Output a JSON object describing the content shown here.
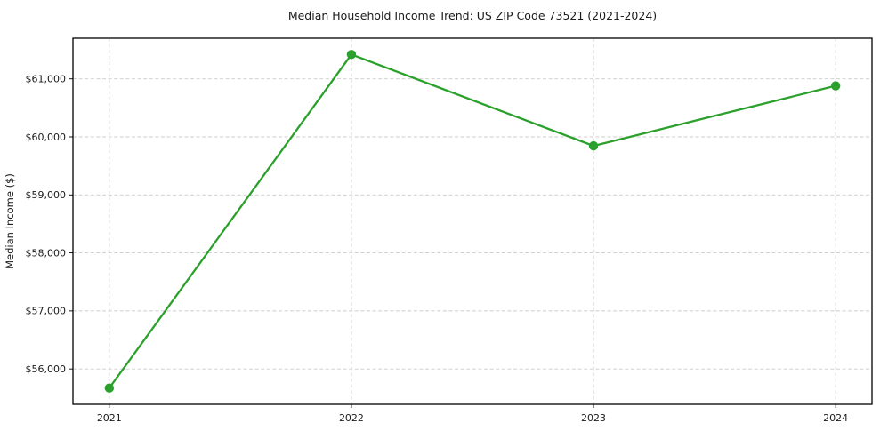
{
  "chart_data": {
    "type": "line",
    "title": "Median Household Income Trend: US ZIP Code 73521 (2021-2024)",
    "xlabel": "",
    "ylabel": "Median Income ($)",
    "x": [
      2021,
      2022,
      2023,
      2024
    ],
    "xtick_labels": [
      "2021",
      "2022",
      "2023",
      "2024"
    ],
    "series": [
      {
        "name": "Median Household Income",
        "values": [
          55670,
          61420,
          59845,
          60880
        ],
        "value_labels": [
          "$55,670",
          "$61,420",
          "$59,845",
          "$60,880"
        ]
      }
    ],
    "yticks": [
      56000,
      57000,
      58000,
      59000,
      60000,
      61000
    ],
    "ytick_labels": [
      "$56,000",
      "$57,000",
      "$58,000",
      "$59,000",
      "$60,000",
      "$61,000"
    ],
    "xlim": [
      2020.85,
      2024.15
    ],
    "ylim": [
      55390,
      61700
    ],
    "grid": true,
    "grid_style": "dashed",
    "legend_position": "none",
    "line_color": "#2ca02c",
    "marker": "circle",
    "grid_color": "#cccccc",
    "spine_color": "#000000",
    "text_color": "#1a1a1a",
    "background_color": "#ffffff"
  }
}
